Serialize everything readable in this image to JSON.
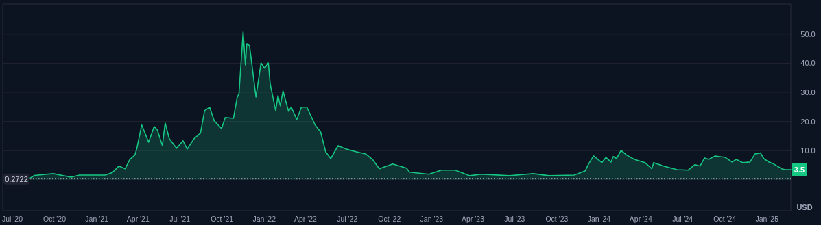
{
  "chart_data": {
    "type": "area",
    "ylabel": "USD",
    "x": [
      "2020-08-08",
      "2020-08-18",
      "2020-09-28",
      "2020-11-06",
      "2020-11-24",
      "2021-01-20",
      "2021-02-04",
      "2021-02-18",
      "2021-03-04",
      "2021-03-14",
      "2021-03-25",
      "2021-03-29",
      "2021-04-09",
      "2021-04-24",
      "2021-05-06",
      "2021-05-13",
      "2021-05-24",
      "2021-05-30",
      "2021-06-08",
      "2021-06-24",
      "2021-07-08",
      "2021-07-17",
      "2021-08-01",
      "2021-08-15",
      "2021-08-24",
      "2021-09-04",
      "2021-09-14",
      "2021-09-30",
      "2021-10-08",
      "2021-10-26",
      "2021-11-03",
      "2021-11-07",
      "2021-11-16",
      "2021-11-21",
      "2021-11-24",
      "2021-11-30",
      "2021-12-14",
      "2021-12-25",
      "2022-01-02",
      "2022-01-10",
      "2022-01-14",
      "2022-01-26",
      "2022-01-31",
      "2022-02-05",
      "2022-02-11",
      "2022-02-23",
      "2022-03-01",
      "2022-03-13",
      "2022-03-23",
      "2022-04-04",
      "2022-04-22",
      "2022-05-04",
      "2022-05-15",
      "2022-05-26",
      "2022-06-11",
      "2022-06-29",
      "2022-07-21",
      "2022-08-10",
      "2022-08-25",
      "2022-09-09",
      "2022-10-08",
      "2022-11-07",
      "2022-11-14",
      "2022-12-26",
      "2023-01-22",
      "2023-02-21",
      "2023-03-25",
      "2023-04-19",
      "2023-06-20",
      "2023-08-10",
      "2023-09-14",
      "2023-11-08",
      "2023-12-02",
      "2023-12-09",
      "2023-12-20",
      "2024-01-07",
      "2024-01-16",
      "2024-01-27",
      "2024-02-01",
      "2024-02-08",
      "2024-02-18",
      "2024-03-01",
      "2024-03-18",
      "2024-04-10",
      "2024-04-25",
      "2024-04-29",
      "2024-05-20",
      "2024-06-19",
      "2024-07-13",
      "2024-07-28",
      "2024-08-08",
      "2024-08-18",
      "2024-08-27",
      "2024-09-10",
      "2024-10-02",
      "2024-10-17",
      "2024-10-26",
      "2024-11-09",
      "2024-11-25",
      "2024-12-06",
      "2024-12-18",
      "2024-12-25",
      "2025-01-05",
      "2025-01-16",
      "2025-02-02",
      "2025-02-09",
      "2025-02-22"
    ],
    "series": [
      {
        "color": "#16c784",
        "values": [
          0.5,
          1.5,
          2.1,
          0.9,
          1.6,
          1.6,
          2.5,
          4.7,
          3.8,
          7.0,
          8.5,
          10.5,
          18.8,
          12.9,
          18.3,
          17.1,
          11.7,
          19.5,
          14.1,
          10.8,
          13.4,
          10.5,
          14.1,
          16.0,
          23.7,
          24.9,
          20.2,
          17.6,
          21.4,
          21.1,
          28.2,
          29.6,
          50.7,
          39.4,
          46.7,
          46.0,
          28.4,
          40.1,
          38.3,
          40.1,
          32.9,
          23.7,
          28.9,
          25.4,
          30.5,
          23.5,
          24.9,
          20.7,
          24.9,
          24.9,
          18.8,
          16.4,
          9.6,
          7.3,
          11.7,
          10.5,
          9.6,
          8.9,
          7.0,
          3.8,
          5.4,
          4.0,
          2.6,
          1.9,
          3.3,
          3.3,
          1.4,
          1.9,
          1.4,
          2.1,
          1.4,
          1.6,
          3.1,
          5.4,
          8.2,
          5.9,
          7.7,
          6.1,
          8.0,
          7.3,
          10.1,
          8.5,
          7.0,
          5.9,
          3.8,
          5.9,
          4.7,
          3.5,
          3.3,
          5.2,
          4.7,
          7.5,
          7.0,
          8.2,
          7.7,
          6.1,
          7.0,
          5.9,
          6.1,
          8.9,
          9.2,
          7.3,
          6.1,
          5.4,
          3.8,
          3.5,
          3.5
        ]
      }
    ],
    "xlim": [
      "2020-06-10",
      "2025-02-22"
    ],
    "xticks": [
      {
        "value": "2020-07-01",
        "label": "Jul '20"
      },
      {
        "value": "2020-10-01",
        "label": "Oct '20"
      },
      {
        "value": "2021-01-01",
        "label": "Jan '21"
      },
      {
        "value": "2021-04-01",
        "label": "Apr '21"
      },
      {
        "value": "2021-07-01",
        "label": "Jul '21"
      },
      {
        "value": "2021-10-01",
        "label": "Oct '21"
      },
      {
        "value": "2022-01-01",
        "label": "Jan '22"
      },
      {
        "value": "2022-04-01",
        "label": "Apr '22"
      },
      {
        "value": "2022-07-01",
        "label": "Jul '22"
      },
      {
        "value": "2022-10-01",
        "label": "Oct '22"
      },
      {
        "value": "2023-01-01",
        "label": "Jan '23"
      },
      {
        "value": "2023-04-01",
        "label": "Apr '23"
      },
      {
        "value": "2023-07-01",
        "label": "Jul '23"
      },
      {
        "value": "2023-10-01",
        "label": "Oct '23"
      },
      {
        "value": "2024-01-01",
        "label": "Jan '24"
      },
      {
        "value": "2024-04-01",
        "label": "Apr '24"
      },
      {
        "value": "2024-07-01",
        "label": "Jul '24"
      },
      {
        "value": "2024-10-01",
        "label": "Oct '24"
      },
      {
        "value": "2025-01-01",
        "label": "Jan '25"
      }
    ],
    "ylim": [
      -10.6,
      60.3
    ],
    "yticks": [
      {
        "value": 10,
        "label": "10.0"
      },
      {
        "value": 20,
        "label": "20.0"
      },
      {
        "value": 30,
        "label": "30.0"
      },
      {
        "value": 40,
        "label": "40.0"
      },
      {
        "value": 50,
        "label": "50.0"
      }
    ],
    "grid": "y",
    "ref_lines": [
      {
        "axis": "y",
        "value": 0.2722,
        "label": "0.2722",
        "line_style": "dotted",
        "color": "#a1a7bb"
      }
    ],
    "annotations": [
      {
        "text": "3.5",
        "x": "2025-02-22",
        "y": 3.5
      }
    ]
  }
}
